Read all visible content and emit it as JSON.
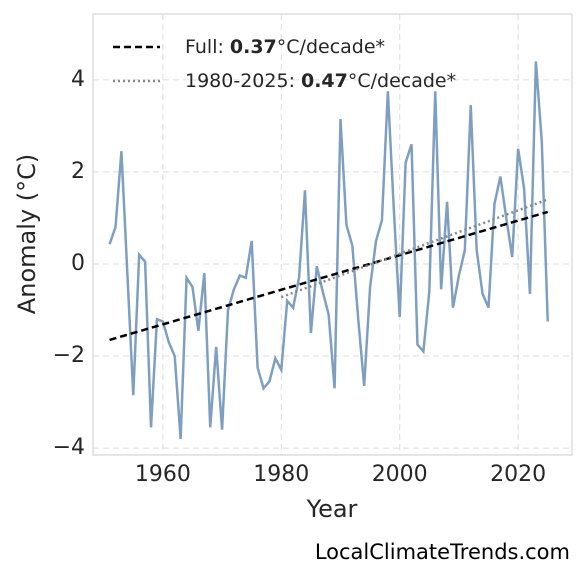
{
  "chart_data": {
    "type": "line",
    "x_label": "Year",
    "y_label": "Anomaly (°C)",
    "xlim": [
      1948.2,
      2029.1
    ],
    "ylim": [
      -4.15,
      5.43
    ],
    "xticks": [
      1960,
      1980,
      2000,
      2020
    ],
    "yticks": [
      {
        "value": -4,
        "label": "−4"
      },
      {
        "value": -2,
        "label": "−2"
      },
      0,
      2,
      4
    ],
    "grid": true,
    "legend": "upper left",
    "x": [
      1951,
      1952,
      1953,
      1954,
      1955,
      1956,
      1957,
      1958,
      1959,
      1960,
      1961,
      1962,
      1963,
      1964,
      1965,
      1966,
      1967,
      1968,
      1969,
      1970,
      1971,
      1972,
      1973,
      1974,
      1975,
      1976,
      1977,
      1978,
      1979,
      1980,
      1981,
      1982,
      1983,
      1984,
      1985,
      1986,
      1987,
      1988,
      1989,
      1990,
      1991,
      1992,
      1993,
      1994,
      1995,
      1996,
      1997,
      1998,
      1999,
      2000,
      2001,
      2002,
      2003,
      2004,
      2005,
      2006,
      2007,
      2008,
      2009,
      2010,
      2011,
      2012,
      2013,
      2014,
      2015,
      2016,
      2017,
      2018,
      2019,
      2020,
      2021,
      2022,
      2023,
      2024,
      2025
    ],
    "series": [
      {
        "color": "#7f9fc0",
        "values": [
          0.43,
          0.8,
          2.45,
          -0.2,
          -2.85,
          0.2,
          0.05,
          -3.55,
          -1.2,
          -1.25,
          -1.7,
          -2.0,
          -3.8,
          -0.3,
          -0.5,
          -1.45,
          -0.2,
          -3.55,
          -1.8,
          -3.6,
          -1.0,
          -0.55,
          -0.25,
          -0.3,
          0.5,
          -2.25,
          -2.7,
          -2.55,
          -2.05,
          -2.3,
          -0.8,
          -0.95,
          -0.3,
          1.6,
          -1.5,
          -0.05,
          -0.6,
          -1.1,
          -2.7,
          3.15,
          0.85,
          0.4,
          -1.2,
          -2.65,
          -0.5,
          0.5,
          0.95,
          3.75,
          1.2,
          -1.15,
          2.2,
          2.6,
          -1.75,
          -1.9,
          -0.6,
          3.75,
          -0.55,
          1.35,
          -0.95,
          -0.25,
          0.3,
          3.45,
          0.3,
          -0.65,
          -0.95,
          1.3,
          1.9,
          1.0,
          0.15,
          2.5,
          1.65,
          -0.65,
          4.4,
          2.65,
          -1.25
        ]
      }
    ],
    "trend_lines": [
      {
        "name": "Full:",
        "rate": 0.37,
        "unit": "°C/decade*",
        "color": "#000000",
        "style": "dashed",
        "x": [
          1951,
          2025
        ],
        "values": [
          -1.65,
          1.13
        ]
      },
      {
        "name": "1980-2025:",
        "rate": 0.47,
        "unit": "°C/decade*",
        "color": "#888888",
        "style": "dotted",
        "x": [
          1980,
          2025
        ],
        "values": [
          -0.72,
          1.4
        ]
      }
    ],
    "source": "LocalClimateTrends.com"
  }
}
